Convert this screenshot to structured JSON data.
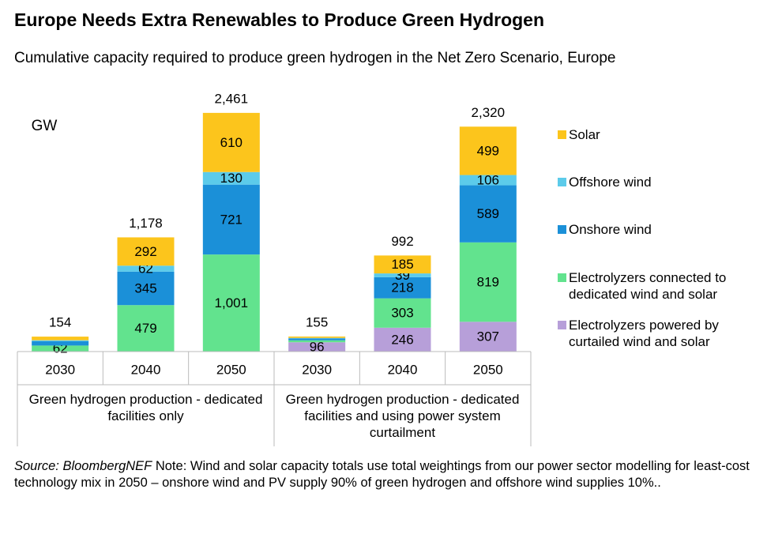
{
  "chart_data": {
    "type": "stacked_bar",
    "title": "Europe Needs Extra Renewables to Produce Green Hydrogen",
    "subtitle": "Cumulative capacity required to produce green hydrogen in the Net Zero Scenario, Europe",
    "ylabel": "GW",
    "categories": [
      "2030",
      "2040",
      "2050",
      "2030",
      "2040",
      "2050"
    ],
    "groups": [
      "Green hydrogen production - dedicated facilities only",
      "Green hydrogen production - dedicated facilities and using power system curtailment"
    ],
    "series": [
      {
        "name": "Electrolyzers powered by curtailed wind and solar",
        "color": "#b79fd9",
        "values": [
          null,
          null,
          null,
          96,
          246,
          307
        ],
        "value_labels": [
          null,
          null,
          null,
          "96",
          "246",
          "307"
        ]
      },
      {
        "name": "Electrolyzers connected to dedicated wind and solar",
        "color": "#62e38e",
        "values": [
          62,
          479,
          1001,
          20,
          303,
          819
        ],
        "value_labels": [
          "62",
          "479",
          "1,001",
          null,
          "303",
          "819"
        ]
      },
      {
        "name": "Onshore wind",
        "color": "#1b90d8",
        "values": [
          45,
          345,
          721,
          20,
          218,
          589
        ],
        "value_labels": [
          null,
          "345",
          "721",
          null,
          "218",
          "589"
        ]
      },
      {
        "name": "Offshore wind",
        "color": "#5ccbea",
        "values": [
          10,
          62,
          130,
          5,
          39,
          106
        ],
        "value_labels": [
          null,
          "62",
          "130",
          null,
          "39",
          "106"
        ]
      },
      {
        "name": "Solar",
        "color": "#fcc51c",
        "values": [
          37,
          292,
          610,
          14,
          185,
          499
        ],
        "value_labels": [
          null,
          "292",
          "610",
          null,
          "185",
          "499"
        ]
      }
    ],
    "totals": [
      154,
      1178,
      2461,
      155,
      992,
      2320
    ],
    "total_labels": [
      "154",
      "1,178",
      "2,461",
      "155",
      "992",
      "2,320"
    ],
    "ylim": [
      0,
      2730
    ],
    "source": "Source: BloombergNEF",
    "note": "Note: Wind and solar capacity totals use total weightings from our power sector modelling for least-cost technology mix in 2050 – onshore wind and PV supply 90% of green hydrogen and offshore wind supplies 10%.."
  }
}
